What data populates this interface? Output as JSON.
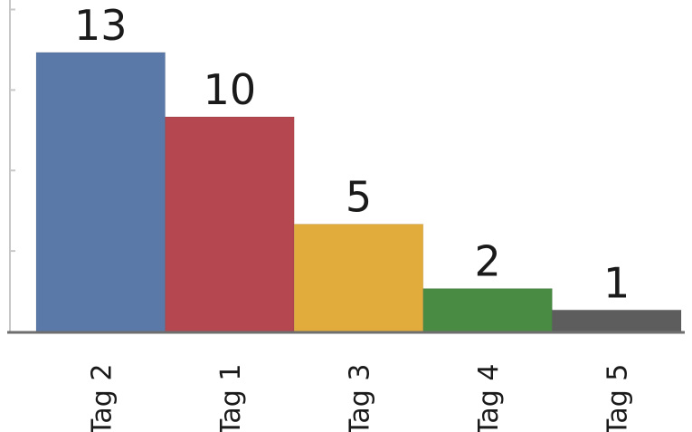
{
  "chart_data": {
    "type": "bar",
    "categories": [
      "Tag 2",
      "Tag 1",
      "Tag 3",
      "Tag 4",
      "Tag 5"
    ],
    "values": [
      13,
      10,
      5,
      2,
      1
    ],
    "colors": [
      "#5b79a8",
      "#b44750",
      "#e2ac3c",
      "#4a8b44",
      "#5d5d5d"
    ],
    "data_labels": [
      "13",
      "10",
      "5",
      "2",
      "1"
    ],
    "title": "",
    "xlabel": "",
    "ylabel": "",
    "ylim": [
      0,
      15.5
    ],
    "y_ticks": [
      0,
      3.75,
      7.5,
      11.25,
      15
    ],
    "grid": false,
    "legend": "none"
  }
}
